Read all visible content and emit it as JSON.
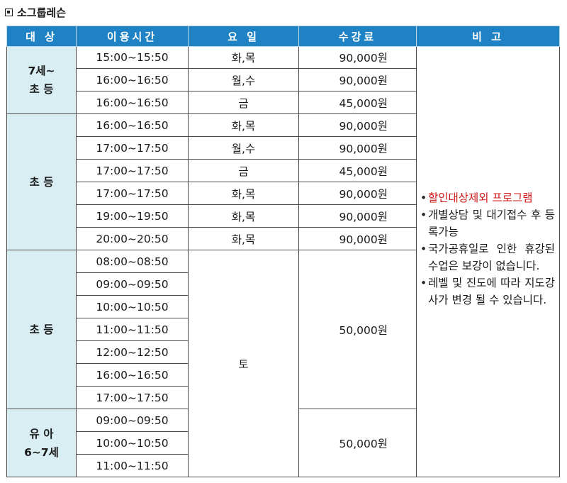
{
  "title": "소그룹레슨",
  "headers": [
    "대 상",
    "이용시간",
    "요 일",
    "수강료",
    "비 고"
  ],
  "groups": [
    {
      "target": "7세~\n초 등",
      "rows": [
        {
          "time": "15:00~15:50",
          "day": "화,목",
          "fee": "90,000원"
        },
        {
          "time": "16:00~16:50",
          "day": "월,수",
          "fee": "90,000원"
        },
        {
          "time": "16:00~16:50",
          "day": "금",
          "fee": "45,000원"
        }
      ]
    },
    {
      "target": "초 등",
      "rows": [
        {
          "time": "16:00~16:50",
          "day": "화,목",
          "fee": "90,000원"
        },
        {
          "time": "17:00~17:50",
          "day": "월,수",
          "fee": "90,000원"
        },
        {
          "time": "17:00~17:50",
          "day": "금",
          "fee": "45,000원"
        },
        {
          "time": "17:00~17:50",
          "day": "화,목",
          "fee": "90,000원"
        },
        {
          "time": "19:00~19:50",
          "day": "화,목",
          "fee": "90,000원"
        },
        {
          "time": "20:00~20:50",
          "day": "화,목",
          "fee": "90,000원"
        }
      ]
    },
    {
      "target": "초 등",
      "times": [
        "08:00~08:50",
        "09:00~09:50",
        "10:00~10:50",
        "11:00~11:50",
        "12:00~12:50",
        "16:00~16:50",
        "17:00~17:50"
      ],
      "fee": "50,000원"
    },
    {
      "target": "유 아\n6~7세",
      "times": [
        "09:00~09:50",
        "10:00~10:50",
        "11:00~11:50"
      ],
      "fee": "50,000원"
    }
  ],
  "saturday_day": "토",
  "notes": [
    "할인대상제외 프로그램",
    "개별상담 및 대기접수 후 등록가능",
    "국가공휴일로 인한 휴강된 수업은 보강이 없습니다.",
    "레벨 및 진도에 따라 지도강사가 변경 될 수 있습니다."
  ]
}
